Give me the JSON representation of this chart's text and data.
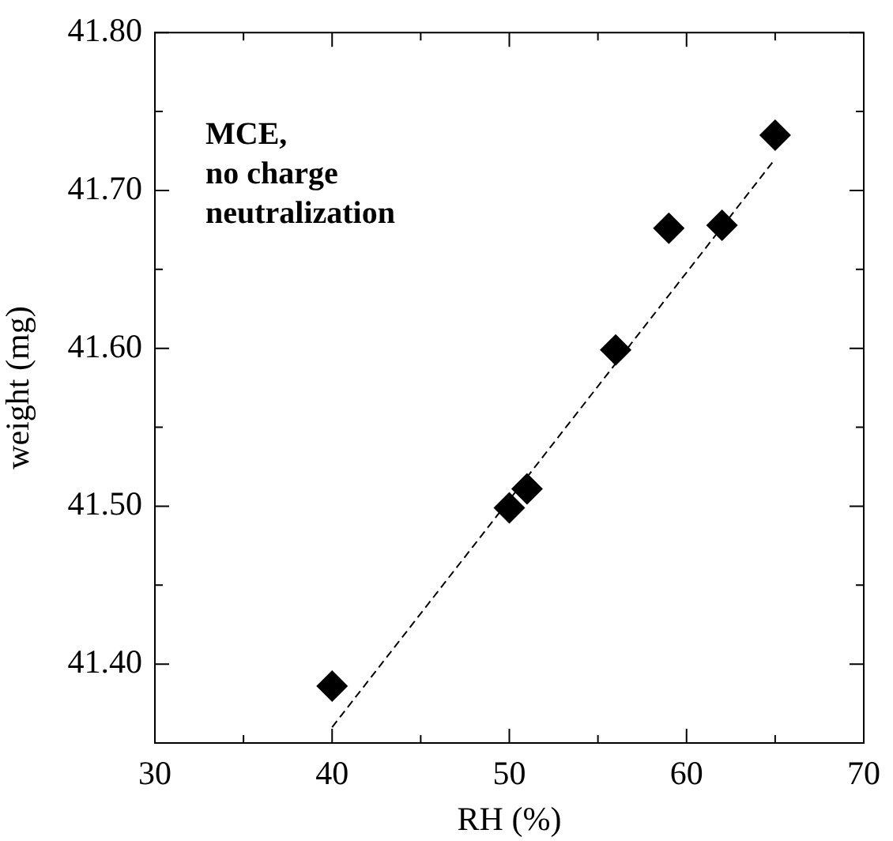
{
  "chart_data": {
    "type": "scatter",
    "xlabel": "RH (%)",
    "ylabel": "weight (mg)",
    "annotations": [
      "MCE,\nno charge\nneutralization"
    ],
    "x": [
      40,
      50,
      51,
      56,
      59,
      62,
      65
    ],
    "series": [
      {
        "color": "#000000",
        "marker": "diamond",
        "values": [
          41.386,
          41.499,
          41.511,
          41.599,
          41.676,
          41.678,
          41.735
        ]
      },
      {
        "type": "line",
        "color": "#000000",
        "marker": "none",
        "line_style": "dashed",
        "x": [
          40,
          65
        ],
        "values": [
          41.36,
          41.72
        ]
      }
    ],
    "xlim": [
      30,
      70
    ],
    "xticks": [
      30,
      {
        "value": 35,
        "label": null
      },
      40,
      {
        "value": 45,
        "label": null
      },
      50,
      {
        "value": 55,
        "label": null
      },
      60,
      {
        "value": 65,
        "label": null
      },
      70
    ],
    "ylim": [
      41.35,
      41.8
    ],
    "yticks": [
      {
        "value": 41.35,
        "label": null
      },
      {
        "value": 41.4,
        "label": "41.40"
      },
      {
        "value": 41.45,
        "label": null
      },
      {
        "value": 41.5,
        "label": "41.50"
      },
      {
        "value": 41.55,
        "label": null
      },
      {
        "value": 41.6,
        "label": "41.60"
      },
      {
        "value": 41.65,
        "label": null
      },
      {
        "value": 41.7,
        "label": "41.70"
      },
      {
        "value": 41.75,
        "label": null
      },
      {
        "value": 41.8,
        "label": "41.80"
      }
    ],
    "grid": false,
    "legend": false
  }
}
